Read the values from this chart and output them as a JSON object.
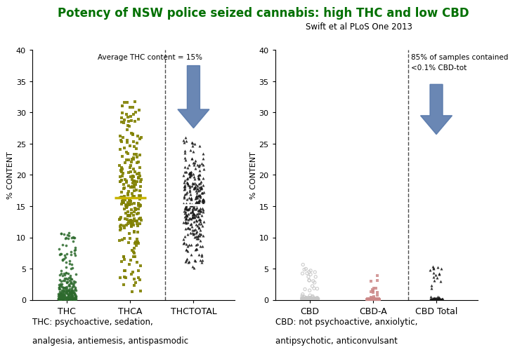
{
  "title": "Potency of NSW police seized cannabis: high THC and low CBD",
  "subtitle": "Swift et al PLoS One 2013",
  "title_color": "#007000",
  "subtitle_color": "#000000",
  "left_annotation": "Average THC content = 15%",
  "right_annotation_line1": "85% of samples contained",
  "right_annotation_line2": "<0.1% CBD-tot",
  "left_ylabel": "% CONTENT",
  "right_ylabel": "% CONTENT",
  "left_xlabel_categories": [
    "THC",
    "THCA",
    "THCTOTAL"
  ],
  "right_xlabel_categories": [
    "CBD",
    "CBD-A",
    "CBD Total"
  ],
  "left_ylim": [
    0,
    40
  ],
  "right_ylim": [
    0,
    40
  ],
  "left_yticks": [
    0,
    5,
    10,
    15,
    20,
    25,
    30,
    35,
    40
  ],
  "right_yticks": [
    0,
    5,
    10,
    15,
    20,
    25,
    30,
    35,
    40
  ],
  "thc_color": "#2d6a2d",
  "thca_color": "#808000",
  "thctotal_color": "#1a1a1a",
  "cbd_color": "#c8c8c8",
  "cbda_color": "#cc8888",
  "cbdtotal_color": "#1a1a1a",
  "left_bottom_text1": "THC: psychoactive, sedation,",
  "left_bottom_text2": "analgesia, antiemesis, antispasmodic",
  "right_bottom_text1": "CBD: not psychoactive, anxiolytic,",
  "right_bottom_text2": "antipsychotic, anticonvulsant",
  "arrow_color": "#5577aa",
  "median_color_thca": "#c8b400",
  "median_color_thctotal": "#ffffff"
}
